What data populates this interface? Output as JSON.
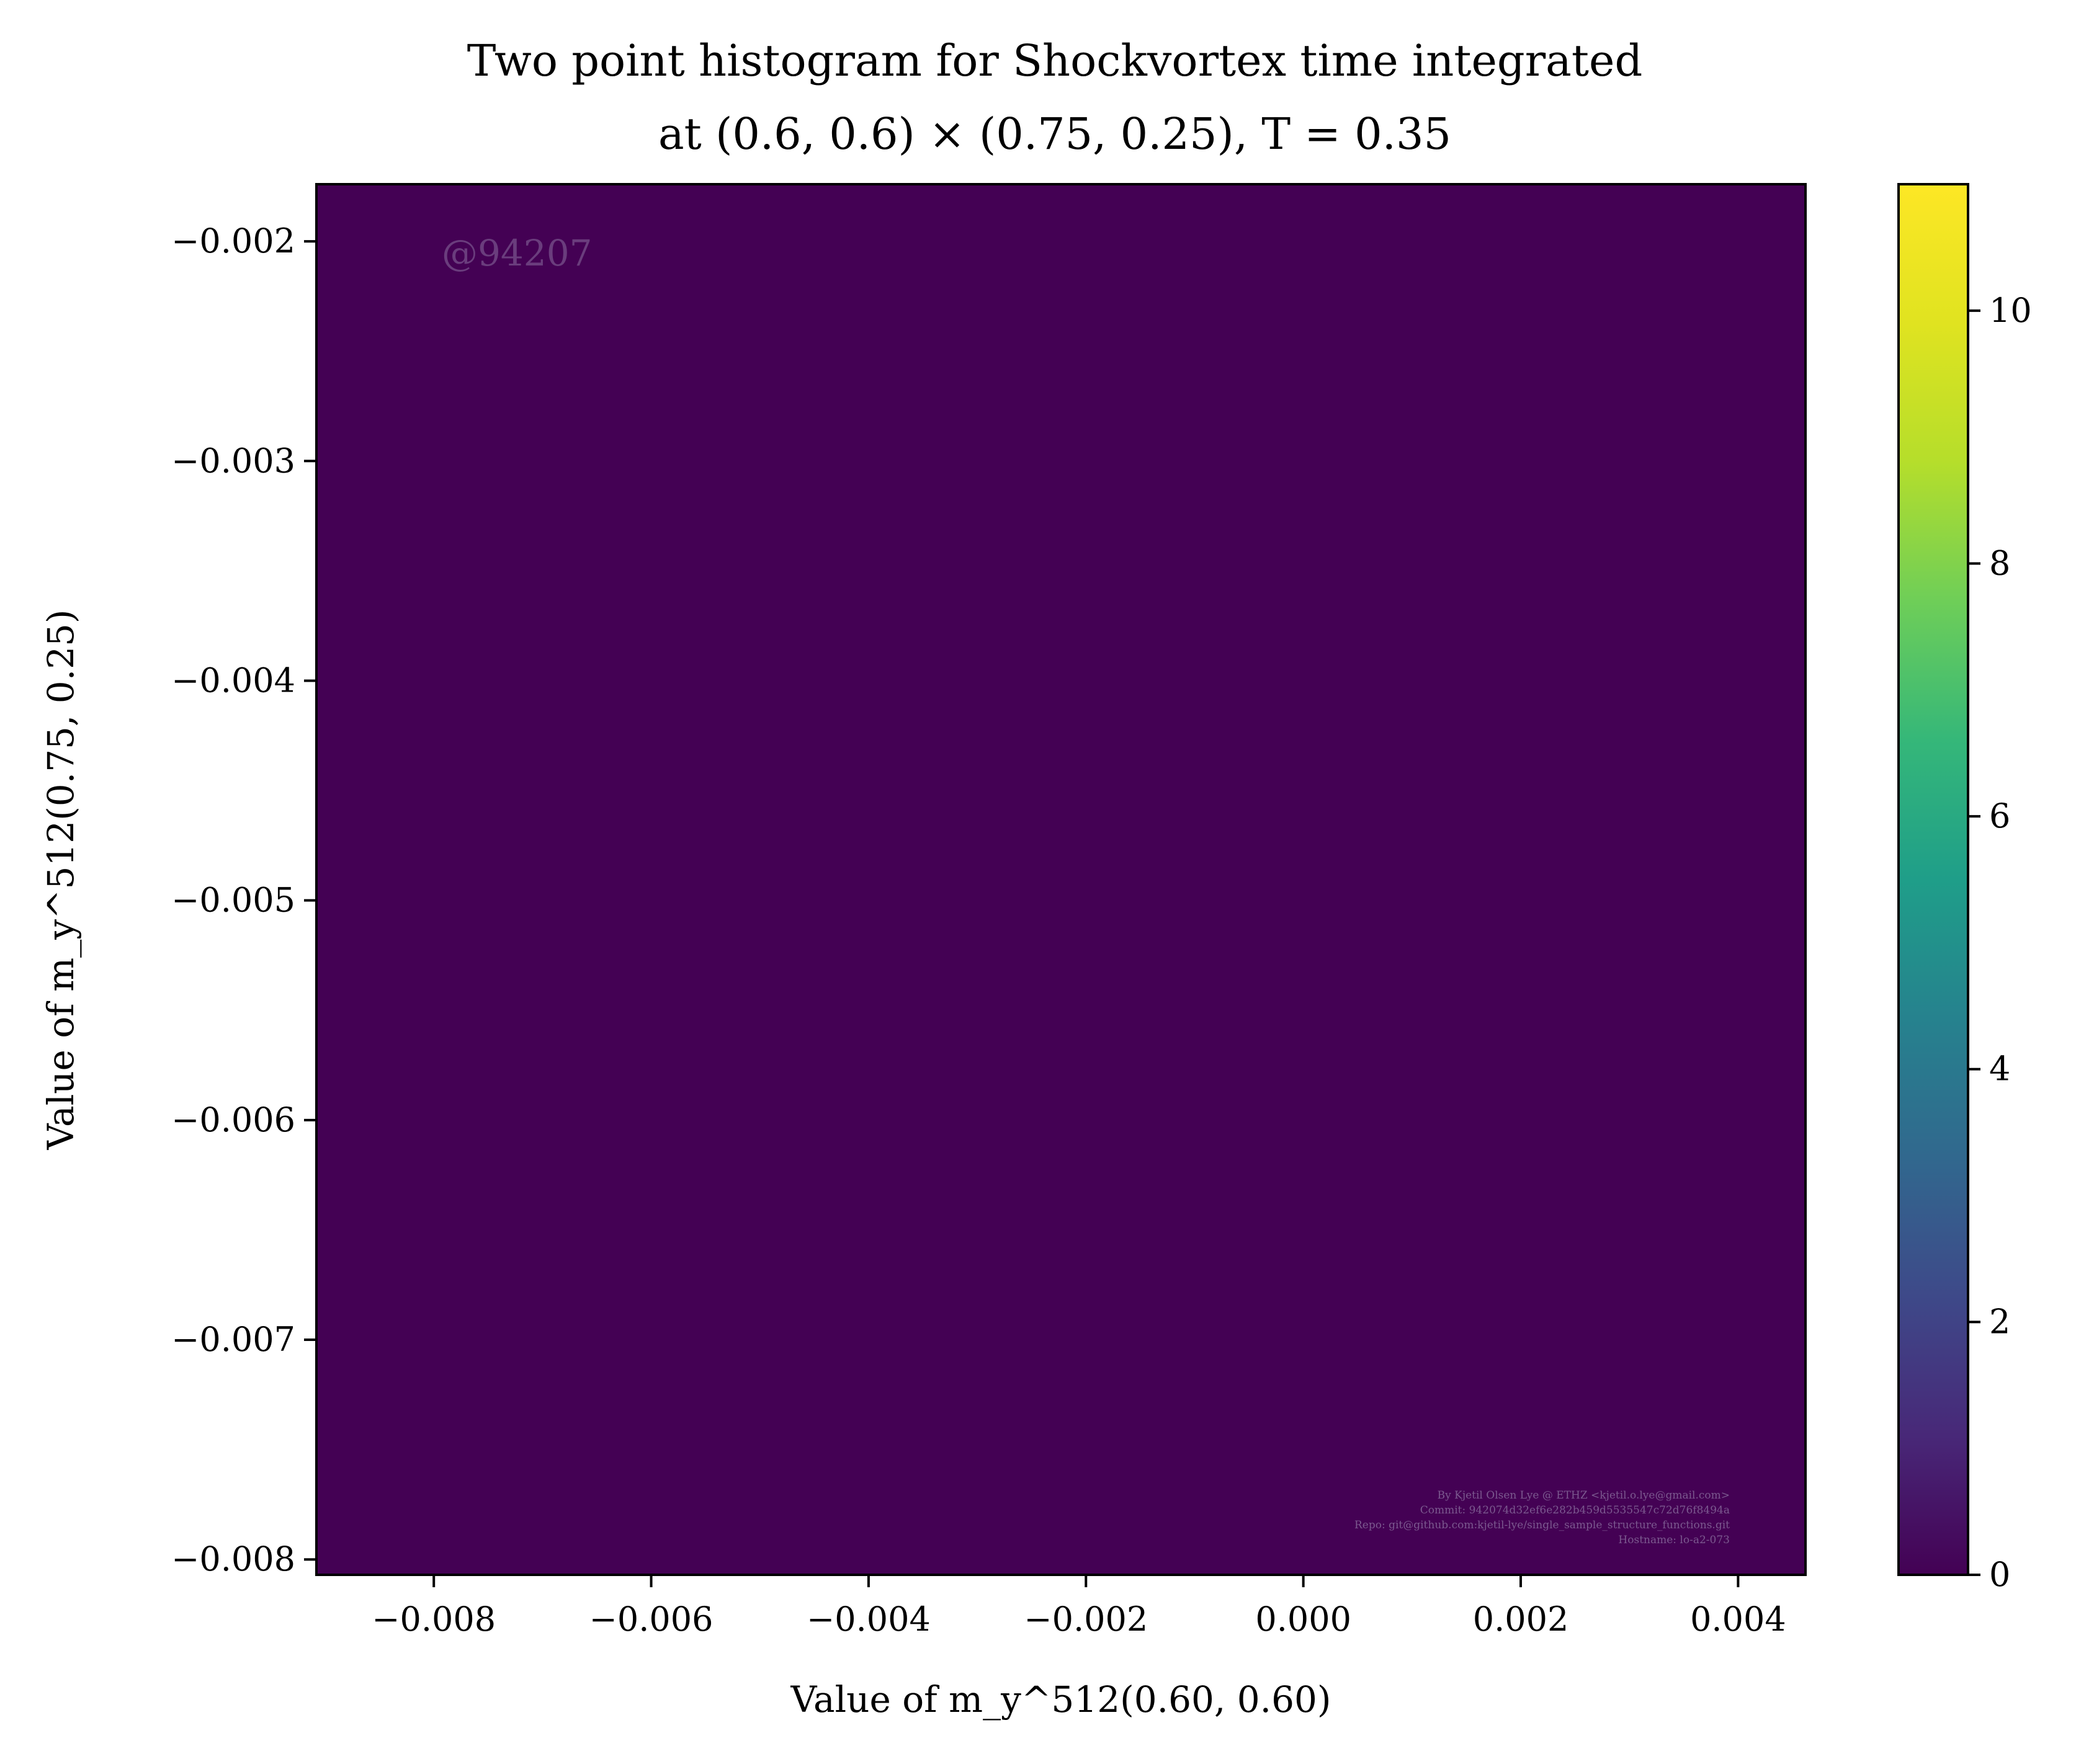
{
  "chart_data": {
    "type": "heatmap",
    "title": "Two point histogram for Shockvortex time integrated",
    "subtitle": "at (0.6, 0.6) × (0.75, 0.25), T = 0.35",
    "xlabel": "Value of m_y^512(0.60, 0.60)",
    "ylabel": "Value of m_y^512(0.75, 0.25)",
    "xlim": [
      -0.00908,
      0.00462
    ],
    "ylim": [
      -0.00807,
      -0.00174
    ],
    "x_ticks": [
      "−0.008",
      "−0.006",
      "−0.004",
      "−0.002",
      "0.000",
      "0.002",
      "0.004"
    ],
    "x_tick_values": [
      -0.008,
      -0.006,
      -0.004,
      -0.002,
      0.0,
      0.002,
      0.004
    ],
    "y_ticks": [
      "−0.002",
      "−0.003",
      "−0.004",
      "−0.005",
      "−0.006",
      "−0.007",
      "−0.008"
    ],
    "y_tick_values": [
      -0.002,
      -0.003,
      -0.004,
      -0.005,
      -0.006,
      -0.007,
      -0.008
    ],
    "colorbar": {
      "min": 0,
      "max": 11,
      "ticks": [
        "0",
        "2",
        "4",
        "6",
        "8",
        "10"
      ],
      "tick_values": [
        0,
        2,
        4,
        6,
        8,
        10
      ],
      "colormap": "viridis"
    },
    "bins": {
      "nx": 31,
      "ny": 31,
      "row_order": "top-to-bottom",
      "counts": [
        "0000000000000000000000000000000",
        "0000000000000000000000000000000",
        "0000000000000000000000000000000",
        "0000000000000000000000000000000",
        "0000000000000000000000000000000",
        "0000000000000000000000000000000",
        "0000000000000000000000000000000",
        "0000000000000000000000000000000",
        "0000000000000000000000000000000",
        "0000000000000000000000000000000",
        "0000000000000000000000000000000",
        "0000000000000000000000000000000",
        "0000000000000000000000000000000",
        "0000000000000000000000000000000",
        "0000000000000000000000000000000",
        "0000000000000000000000000000000",
        "0000000000000000000000000000000",
        "0000000000000000000000000000000",
        "0000000000000000000000000000000",
        "0000000000000000000000000000000",
        "0000000000000000000000000000000",
        "0000000000000000000000000000000",
        "0000000000000000000000000000000",
        "0000000000000000000000000000000",
        "0000000000000000000000000000000",
        "0000000000000000000000000000000",
        "0000000000000000000000000000000",
        "0000000000000000000000000000000",
        "0000000000000000000000000000000",
        "0000000000000000000000000000000",
        "0000000000000000000000000000000"
      ]
    },
    "watermark": "@94207",
    "credits": [
      "By Kjetil Olsen Lye @ ETHZ <kjetil.o.lye@gmail.com>",
      "Commit: 942074d32ef6e282b459d5535547c72d76f8494a",
      "Repo: git@github.com:kjetil-lye/single_sample_structure_functions.git",
      "Hostname: lo-a2-073"
    ]
  }
}
